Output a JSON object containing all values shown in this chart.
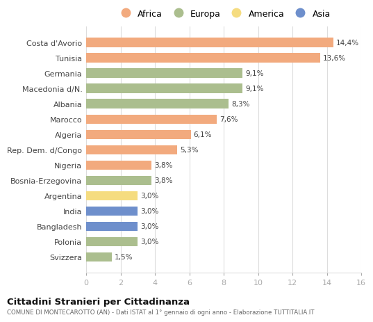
{
  "categories": [
    "Costa d'Avorio",
    "Tunisia",
    "Germania",
    "Macedonia d/N.",
    "Albania",
    "Marocco",
    "Algeria",
    "Rep. Dem. d/Congo",
    "Nigeria",
    "Bosnia-Erzegovina",
    "Argentina",
    "India",
    "Bangladesh",
    "Polonia",
    "Svizzera"
  ],
  "values": [
    14.4,
    13.6,
    9.1,
    9.1,
    8.3,
    7.6,
    6.1,
    5.3,
    3.8,
    3.8,
    3.0,
    3.0,
    3.0,
    3.0,
    1.5
  ],
  "labels": [
    "14,4%",
    "13,6%",
    "9,1%",
    "9,1%",
    "8,3%",
    "7,6%",
    "6,1%",
    "5,3%",
    "3,8%",
    "3,8%",
    "3,0%",
    "3,0%",
    "3,0%",
    "3,0%",
    "1,5%"
  ],
  "colors": [
    "#F2AA7E",
    "#F2AA7E",
    "#ABBE8E",
    "#ABBE8E",
    "#ABBE8E",
    "#F2AA7E",
    "#F2AA7E",
    "#F2AA7E",
    "#F2AA7E",
    "#ABBE8E",
    "#F5DC80",
    "#6E8FCC",
    "#6E8FCC",
    "#ABBE8E",
    "#ABBE8E"
  ],
  "continent_colors": {
    "Africa": "#F2AA7E",
    "Europa": "#ABBE8E",
    "America": "#F5DC80",
    "Asia": "#6E8FCC"
  },
  "legend_labels": [
    "Africa",
    "Europa",
    "America",
    "Asia"
  ],
  "xlim": [
    0,
    16
  ],
  "xticks": [
    0,
    2,
    4,
    6,
    8,
    10,
    12,
    14,
    16
  ],
  "title": "Cittadini Stranieri per Cittadinanza",
  "subtitle": "COMUNE DI MONTECAROTTO (AN) - Dati ISTAT al 1° gennaio di ogni anno - Elaborazione TUTTITALIA.IT",
  "background_color": "#ffffff",
  "bar_height": 0.62,
  "grid_color": "#dddddd"
}
